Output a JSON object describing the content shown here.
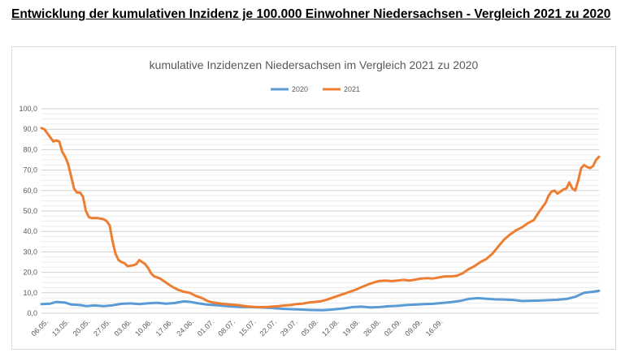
{
  "page": {
    "heading": "Entwicklung der kumulativen Inzidenz je 100.000 Einwohner Niedersachsen - Vergleich 2021 zu 2020"
  },
  "chart_data": {
    "type": "line",
    "title": "kumulative Inzidenzen Niedersachsen im Vergleich 2021 zu 2020",
    "xlabel": "",
    "ylabel": "",
    "ylim": [
      0,
      100
    ],
    "y_ticks": [
      "0,0",
      "10,0",
      "20,0",
      "30,0",
      "40,0",
      "50,0",
      "60,0",
      "70,0",
      "80,0",
      "90,0",
      "100,0"
    ],
    "x_tick_labels": [
      "06.05.",
      "13.05.",
      "20.05.",
      "27.05.",
      "03.06.",
      "10.06.",
      "17.06.",
      "24.06.",
      "01.07.",
      "08.07.",
      "15.07.",
      "22.07.",
      "29.07.",
      "05.08.",
      "12.08.",
      "19.08.",
      "26.08.",
      "02.09.",
      "09.09.",
      "16.09."
    ],
    "legend_position": "top",
    "grid": true,
    "series": [
      {
        "name": "2020",
        "color": "#5b9bd5",
        "points": [
          [
            0,
            4.5
          ],
          [
            3,
            4.7
          ],
          [
            5,
            5.5
          ],
          [
            8,
            5.2
          ],
          [
            10,
            4.3
          ],
          [
            13,
            4.0
          ],
          [
            15,
            3.5
          ],
          [
            18,
            3.8
          ],
          [
            21,
            3.5
          ],
          [
            24,
            3.9
          ],
          [
            27,
            4.6
          ],
          [
            30,
            4.8
          ],
          [
            33,
            4.5
          ],
          [
            36,
            4.9
          ],
          [
            39,
            5.1
          ],
          [
            42,
            4.7
          ],
          [
            45,
            5.0
          ],
          [
            48,
            5.8
          ],
          [
            50,
            5.6
          ],
          [
            53,
            4.8
          ],
          [
            56,
            4.2
          ],
          [
            60,
            3.8
          ],
          [
            63,
            3.4
          ],
          [
            67,
            3.1
          ],
          [
            70,
            3.0
          ],
          [
            74,
            2.8
          ],
          [
            77,
            2.6
          ],
          [
            81,
            2.2
          ],
          [
            84,
            2.0
          ],
          [
            88,
            1.8
          ],
          [
            91,
            1.6
          ],
          [
            95,
            1.5
          ],
          [
            98,
            1.8
          ],
          [
            102,
            2.4
          ],
          [
            105,
            3.0
          ],
          [
            108,
            3.2
          ],
          [
            111,
            2.8
          ],
          [
            114,
            3.0
          ],
          [
            117,
            3.4
          ],
          [
            120,
            3.6
          ],
          [
            123,
            4.0
          ],
          [
            126,
            4.2
          ],
          [
            129,
            4.5
          ],
          [
            132,
            4.6
          ],
          [
            135,
            5.0
          ],
          [
            138,
            5.4
          ],
          [
            141,
            6.0
          ],
          [
            144,
            7.0
          ],
          [
            147,
            7.4
          ],
          [
            150,
            7.1
          ],
          [
            153,
            6.8
          ],
          [
            156,
            6.7
          ],
          [
            159,
            6.5
          ],
          [
            162,
            6.0
          ],
          [
            165,
            6.1
          ],
          [
            168,
            6.2
          ],
          [
            171,
            6.4
          ],
          [
            174,
            6.6
          ],
          [
            177,
            7.0
          ],
          [
            180,
            8.0
          ],
          [
            183,
            10.0
          ],
          [
            186,
            10.5
          ],
          [
            188,
            11.0
          ]
        ]
      },
      {
        "name": "2021",
        "color": "#ed7d31",
        "points": [
          [
            0,
            90.5
          ],
          [
            1,
            90.0
          ],
          [
            3,
            86.0
          ],
          [
            4,
            84.0
          ],
          [
            5,
            84.5
          ],
          [
            6,
            84.0
          ],
          [
            7,
            79.0
          ],
          [
            8,
            76.5
          ],
          [
            9,
            73.0
          ],
          [
            10,
            67.0
          ],
          [
            11,
            61.0
          ],
          [
            12,
            59.0
          ],
          [
            13,
            59.0
          ],
          [
            14,
            57.0
          ],
          [
            15,
            50.0
          ],
          [
            16,
            47.0
          ],
          [
            17,
            46.5
          ],
          [
            19,
            46.5
          ],
          [
            21,
            46.0
          ],
          [
            22,
            45.0
          ],
          [
            23,
            43.0
          ],
          [
            24,
            35.0
          ],
          [
            25,
            29.0
          ],
          [
            26,
            26.0
          ],
          [
            27,
            25.0
          ],
          [
            28,
            24.5
          ],
          [
            29,
            23.0
          ],
          [
            31,
            23.5
          ],
          [
            32,
            24.0
          ],
          [
            33,
            26.0
          ],
          [
            35,
            24.0
          ],
          [
            36,
            22.0
          ],
          [
            37,
            19.5
          ],
          [
            38,
            18.0
          ],
          [
            40,
            17.0
          ],
          [
            42,
            15.0
          ],
          [
            44,
            13.0
          ],
          [
            46,
            11.5
          ],
          [
            48,
            10.5
          ],
          [
            50,
            10.0
          ],
          [
            52,
            8.5
          ],
          [
            54,
            7.5
          ],
          [
            56,
            6.0
          ],
          [
            58,
            5.2
          ],
          [
            60,
            4.8
          ],
          [
            62,
            4.5
          ],
          [
            64,
            4.2
          ],
          [
            66,
            4.0
          ],
          [
            68,
            3.6
          ],
          [
            70,
            3.3
          ],
          [
            72,
            3.1
          ],
          [
            74,
            3.0
          ],
          [
            76,
            3.0
          ],
          [
            78,
            3.3
          ],
          [
            80,
            3.5
          ],
          [
            82,
            3.8
          ],
          [
            84,
            4.0
          ],
          [
            86,
            4.5
          ],
          [
            88,
            4.7
          ],
          [
            90,
            5.2
          ],
          [
            92,
            5.5
          ],
          [
            94,
            5.8
          ],
          [
            96,
            6.5
          ],
          [
            98,
            7.5
          ],
          [
            100,
            8.5
          ],
          [
            102,
            9.5
          ],
          [
            104,
            10.5
          ],
          [
            106,
            11.5
          ],
          [
            108,
            12.8
          ],
          [
            110,
            14.0
          ],
          [
            112,
            15.0
          ],
          [
            114,
            15.8
          ],
          [
            116,
            16.0
          ],
          [
            118,
            15.7
          ],
          [
            120,
            16.0
          ],
          [
            122,
            16.3
          ],
          [
            124,
            16.0
          ],
          [
            126,
            16.4
          ],
          [
            128,
            17.0
          ],
          [
            130,
            17.2
          ],
          [
            132,
            17.0
          ],
          [
            134,
            17.5
          ],
          [
            136,
            18.0
          ],
          [
            138,
            18.0
          ],
          [
            140,
            18.3
          ],
          [
            142,
            19.5
          ],
          [
            144,
            21.5
          ],
          [
            146,
            23.0
          ],
          [
            148,
            25.0
          ],
          [
            150,
            26.5
          ],
          [
            152,
            29.0
          ],
          [
            154,
            32.5
          ],
          [
            156,
            36.0
          ],
          [
            158,
            38.5
          ],
          [
            160,
            40.5
          ],
          [
            162,
            42.0
          ],
          [
            164,
            44.0
          ],
          [
            166,
            45.5
          ],
          [
            168,
            50.0
          ],
          [
            170,
            54.0
          ],
          [
            171,
            57.5
          ],
          [
            172,
            59.5
          ],
          [
            173,
            60.0
          ],
          [
            174,
            58.5
          ],
          [
            175,
            59.5
          ],
          [
            176,
            60.5
          ],
          [
            177,
            61.0
          ],
          [
            178,
            64.0
          ],
          [
            179,
            61.0
          ],
          [
            180,
            60.0
          ],
          [
            181,
            65.0
          ],
          [
            182,
            71.0
          ],
          [
            183,
            72.5
          ],
          [
            184,
            71.5
          ],
          [
            185,
            71.0
          ],
          [
            186,
            72.0
          ],
          [
            187,
            75.0
          ],
          [
            188,
            76.5
          ]
        ]
      }
    ]
  }
}
